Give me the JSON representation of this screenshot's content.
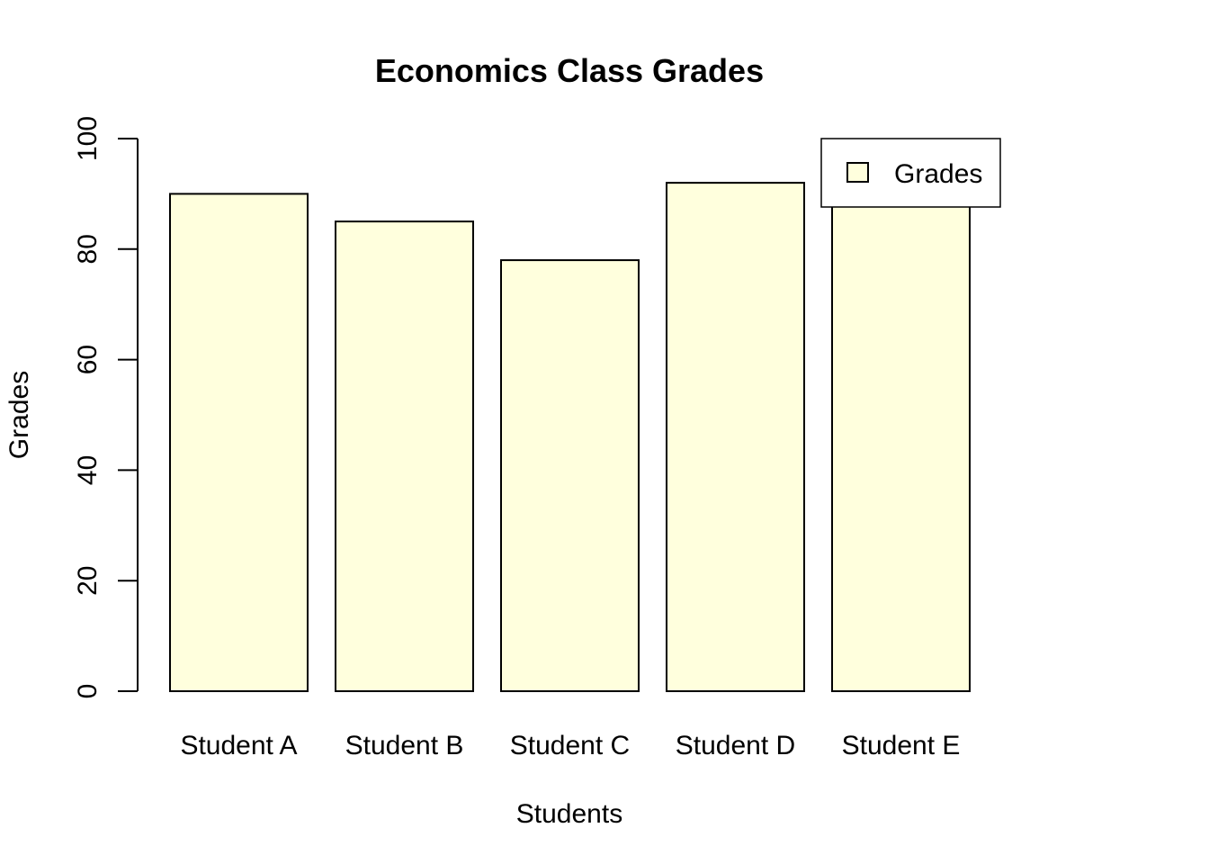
{
  "chart_data": {
    "type": "bar",
    "title": "Economics Class Grades",
    "xlabel": "Students",
    "ylabel": "Grades",
    "categories": [
      "Student A",
      "Student B",
      "Student C",
      "Student D",
      "Student E"
    ],
    "series": [
      {
        "name": "Grades",
        "values": [
          90,
          85,
          78,
          92,
          88
        ]
      }
    ],
    "ylim": [
      0,
      100
    ],
    "yticks": [
      0,
      20,
      40,
      60,
      80,
      100
    ],
    "ytick_labels": [
      "0",
      "20",
      "40",
      "60",
      "80",
      "100"
    ],
    "grid": false,
    "legend": {
      "placement": "top-right",
      "entries": [
        "Grades"
      ]
    },
    "colors": {
      "bar_fill": "#FFFFDD",
      "bar_edge": "#000000"
    }
  }
}
